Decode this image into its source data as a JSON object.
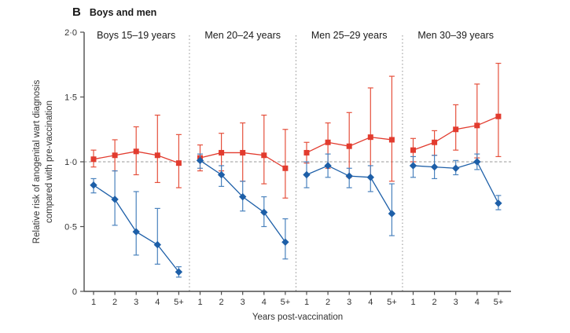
{
  "figure": {
    "panel_letter": "B",
    "title": "Boys and men"
  },
  "colors": {
    "red_series": "#e23b2e",
    "red_error_bar": "#e5503c",
    "blue_series": "#1d5fa8",
    "blue_error_bar": "#4a82bd",
    "reference_line": "#9a9a9a",
    "separator": "#8f8f8f",
    "axis": "#4d4d4d",
    "text": "#333333"
  },
  "chart_data": {
    "type": "line",
    "title": "B Boys and men",
    "xlabel": "Years post-vaccination",
    "ylabel_line1": "Relative risk of anogenital wart diagnosis",
    "ylabel_line2": "compared with pre-vaccination",
    "x_tick_labels": [
      "1",
      "2",
      "3",
      "4",
      "5+"
    ],
    "y_ticks": [
      {
        "value": 0,
        "label": "0"
      },
      {
        "value": 0.5,
        "label": "0·5"
      },
      {
        "value": 1.0,
        "label": "1·0"
      },
      {
        "value": 1.5,
        "label": "1·5"
      },
      {
        "value": 2.0,
        "label": "2·0"
      }
    ],
    "ylim": [
      0,
      2.0
    ],
    "reference_line": 1.0,
    "grid": false,
    "legend": "none",
    "series_styles": [
      {
        "id": "red-squares",
        "marker": "square",
        "color": "#e23b2e",
        "bar_color": "#e5503c"
      },
      {
        "id": "blue-diamonds",
        "marker": "diamond",
        "color": "#1d5fa8",
        "bar_color": "#4a82bd"
      }
    ],
    "panels": [
      {
        "title": "Boys 15–19 years",
        "series": [
          {
            "rr": [
              1.02,
              1.05,
              1.08,
              1.05,
              0.99
            ],
            "lo": [
              0.96,
              0.93,
              0.9,
              0.84,
              0.8
            ],
            "hi": [
              1.09,
              1.17,
              1.27,
              1.36,
              1.21
            ]
          },
          {
            "rr": [
              0.82,
              0.71,
              0.46,
              0.36,
              0.15
            ],
            "lo": [
              0.76,
              0.51,
              0.28,
              0.21,
              0.11
            ],
            "hi": [
              0.87,
              0.93,
              0.77,
              0.64,
              0.19
            ]
          }
        ]
      },
      {
        "title": "Men 20–24 years",
        "series": [
          {
            "rr": [
              1.03,
              1.07,
              1.07,
              1.05,
              0.95
            ],
            "lo": [
              0.93,
              0.93,
              0.85,
              0.83,
              0.72
            ],
            "hi": [
              1.13,
              1.22,
              1.3,
              1.36,
              1.25
            ]
          },
          {
            "rr": [
              1.01,
              0.9,
              0.73,
              0.61,
              0.38
            ],
            "lo": [
              0.95,
              0.81,
              0.62,
              0.5,
              0.25
            ],
            "hi": [
              1.06,
              0.97,
              0.85,
              0.73,
              0.56
            ]
          }
        ]
      },
      {
        "title": "Men 25–29 years",
        "series": [
          {
            "rr": [
              1.07,
              1.15,
              1.12,
              1.19,
              1.17
            ],
            "lo": [
              0.99,
              0.95,
              0.88,
              0.88,
              0.85
            ],
            "hi": [
              1.15,
              1.3,
              1.38,
              1.57,
              1.66
            ]
          },
          {
            "rr": [
              0.9,
              0.97,
              0.89,
              0.88,
              0.6
            ],
            "lo": [
              0.8,
              0.88,
              0.8,
              0.77,
              0.43
            ],
            "hi": [
              1.0,
              1.06,
              0.95,
              0.97,
              0.83
            ]
          }
        ]
      },
      {
        "title": "Men 30–39 years",
        "series": [
          {
            "rr": [
              1.09,
              1.15,
              1.25,
              1.28,
              1.35
            ],
            "lo": [
              1.0,
              1.05,
              1.09,
              1.03,
              1.04
            ],
            "hi": [
              1.18,
              1.24,
              1.44,
              1.6,
              1.76
            ]
          },
          {
            "rr": [
              0.97,
              0.96,
              0.95,
              1.0,
              0.68
            ],
            "lo": [
              0.88,
              0.87,
              0.9,
              0.94,
              0.63
            ],
            "hi": [
              1.04,
              1.05,
              1.01,
              1.06,
              0.74
            ]
          }
        ]
      }
    ]
  }
}
